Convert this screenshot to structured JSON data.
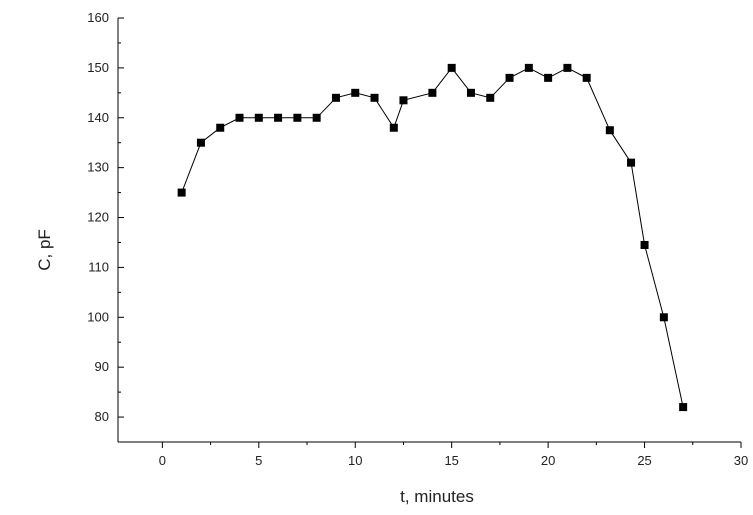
{
  "chart_data": {
    "type": "line",
    "title": "",
    "xlabel": "t, minutes",
    "ylabel": "C, pF",
    "xlim": [
      -2.3,
      30
    ],
    "ylim": [
      75,
      160
    ],
    "x_ticks": [
      0,
      5,
      10,
      15,
      20,
      25,
      30
    ],
    "x_tick_labels": [
      "0",
      "5",
      "10",
      "15",
      "20",
      "25",
      "30"
    ],
    "y_ticks": [
      80,
      90,
      100,
      110,
      120,
      130,
      140,
      150,
      160
    ],
    "y_tick_labels": [
      "80",
      "90",
      "100",
      "110",
      "120",
      "130",
      "140",
      "150",
      "160"
    ],
    "grid": false,
    "legend": "none",
    "colors": {
      "series": "#000000",
      "axis": "#000000"
    },
    "marker": "square",
    "series": [
      {
        "x": [
          1,
          2,
          3,
          4,
          5,
          6,
          7,
          8,
          9,
          10,
          11,
          12,
          12.5,
          14,
          15,
          16,
          17,
          18,
          19,
          20,
          21,
          22,
          23.2,
          24.3,
          25,
          26,
          27
        ],
        "y": [
          125,
          135,
          138,
          140,
          140,
          140,
          140,
          140,
          144,
          145,
          144,
          138,
          143.5,
          145,
          150,
          145,
          144,
          148,
          150,
          148,
          150,
          148,
          137.5,
          131,
          114.5,
          100,
          82
        ]
      }
    ]
  }
}
